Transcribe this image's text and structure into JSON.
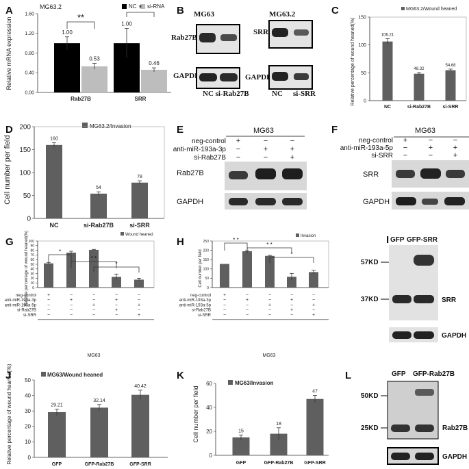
{
  "colors": {
    "dark": "#5f5f5f",
    "light": "#bdbdbd",
    "black": "#000000",
    "blot_bg": "#e4e4e4",
    "band": "#2a2a2a"
  },
  "panel_letters": [
    "A",
    "B",
    "C",
    "D",
    "E",
    "F",
    "G",
    "H",
    "I",
    "J",
    "K",
    "L"
  ],
  "chart_data": [
    {
      "panel": "A",
      "type": "bar",
      "title": "MG63.2",
      "categories": [
        "Rab27B",
        "SRR"
      ],
      "series": [
        {
          "name": "NC",
          "values": [
            1.0,
            1.0
          ],
          "errors": [
            0.13,
            0.3
          ],
          "labels": [
            "1.00",
            "1.00"
          ],
          "color": "#000000"
        },
        {
          "name": "si-RNA",
          "values": [
            0.53,
            0.46
          ],
          "errors": [
            0.06,
            0.04
          ],
          "labels": [
            "0.53",
            "0.46"
          ],
          "color": "#bdbdbd"
        }
      ],
      "ylabel": "Relative mRNA expression",
      "xlabel": "",
      "ylim": [
        0,
        1.6
      ],
      "yticks": [
        "0.00",
        "0.40",
        "0.80",
        "1.20",
        "1.60"
      ],
      "significance": [
        "**",
        "*"
      ],
      "legend": "top-right"
    },
    {
      "panel": "C",
      "type": "bar",
      "title": "MG63.2/Wound heaned",
      "categories": [
        "NC",
        "si-Rab27B",
        "si-SRR"
      ],
      "values": [
        106.21,
        48.32,
        54.68
      ],
      "errors": [
        5,
        2,
        2
      ],
      "labels": [
        "106.21",
        "48.32",
        "54.68"
      ],
      "ylabel": "Relative percentage of wound heaned(%)",
      "ylim": [
        0,
        150
      ],
      "yticks": [
        "0",
        "50",
        "100",
        "150"
      ]
    },
    {
      "panel": "D",
      "type": "bar",
      "title": "MG63.2/Invasion",
      "categories": [
        "NC",
        "si-Rab27B",
        "si-SRR"
      ],
      "values": [
        160,
        54,
        78
      ],
      "errors": [
        5,
        4,
        4
      ],
      "labels": [
        "160",
        "54",
        "78"
      ],
      "ylabel": "Cell number per field",
      "ylim": [
        0,
        200
      ],
      "yticks": [
        "0",
        "50",
        "100",
        "150",
        "200"
      ]
    },
    {
      "panel": "G",
      "type": "bar",
      "title": "Wound heaned",
      "values": [
        52,
        75,
        81,
        23,
        17
      ],
      "errors": [
        2,
        3,
        1,
        6,
        3
      ],
      "ylabel": "Relative percentage of wound heaned(%)",
      "ylim": [
        0,
        100
      ],
      "yticks": [
        "0",
        "10",
        "20",
        "30",
        "40",
        "50",
        "60",
        "70",
        "80",
        "90",
        "100"
      ],
      "treatments": [
        {
          "name": "neg-control",
          "signs": [
            "+",
            "−",
            "−",
            "−",
            "−"
          ]
        },
        {
          "name": "anti-miR-193a-3p",
          "signs": [
            "−",
            "+",
            "−",
            "+",
            "−"
          ]
        },
        {
          "name": "anti-miR-193a-5p",
          "signs": [
            "−",
            "−",
            "+",
            "−",
            "+"
          ]
        },
        {
          "name": "si-Rab27B",
          "signs": [
            "−",
            "−",
            "−",
            "+",
            "−"
          ]
        },
        {
          "name": "si-SRR",
          "signs": [
            "−",
            "−",
            "−",
            "−",
            "+"
          ]
        }
      ],
      "xlabel": "MG63",
      "significance": [
        "*",
        "* *",
        "*"
      ]
    },
    {
      "panel": "H",
      "type": "bar",
      "title": "Invasion",
      "values": [
        127,
        195,
        170,
        58,
        83
      ],
      "errors": [
        0,
        3,
        3,
        18,
        10
      ],
      "ylabel": "Cell number per field",
      "ylim": [
        0,
        250
      ],
      "yticks": [
        "0",
        "50",
        "100",
        "150",
        "200",
        "250"
      ],
      "treatments": [
        {
          "name": "neg-control",
          "signs": [
            "+",
            "−",
            "−",
            "−",
            "−"
          ]
        },
        {
          "name": "anti-miR-193a-3p",
          "signs": [
            "−",
            "+",
            "−",
            "+",
            "−"
          ]
        },
        {
          "name": "anti-miR-193a-5p",
          "signs": [
            "−",
            "−",
            "+",
            "−",
            "+"
          ]
        },
        {
          "name": "si-Rab27B",
          "signs": [
            "−",
            "−",
            "−",
            "+",
            "−"
          ]
        },
        {
          "name": "si-SRR",
          "signs": [
            "−",
            "−",
            "−",
            "−",
            "+"
          ]
        }
      ],
      "xlabel": "MG63",
      "significance": [
        "* *",
        "* *",
        "*"
      ]
    },
    {
      "panel": "J",
      "type": "bar",
      "title": "MG63/Wound heaned",
      "categories": [
        "GFP",
        "GFP-Rab27B",
        "GFP-SRR"
      ],
      "values": [
        29.21,
        32.14,
        40.42
      ],
      "errors": [
        2,
        2,
        3
      ],
      "labels": [
        "29.21",
        "32.14",
        "40.42"
      ],
      "ylabel": "Relative percentage of wound heaned(%)",
      "ylim": [
        0,
        50
      ],
      "yticks": [
        "0",
        "10",
        "20",
        "30",
        "40",
        "50"
      ]
    },
    {
      "panel": "K",
      "type": "bar",
      "title": "MG63/Invasion",
      "categories": [
        "GFP",
        "GFP-Rab27B",
        "GFP-SRR"
      ],
      "values": [
        15,
        18,
        47
      ],
      "errors": [
        2,
        5,
        3
      ],
      "labels": [
        "15",
        "18",
        "47"
      ],
      "ylabel": "Cell number per field",
      "ylim": [
        0,
        60
      ],
      "yticks": [
        "0",
        "20",
        "40",
        "60"
      ]
    }
  ],
  "blots": {
    "B": {
      "left_title": "MG63",
      "right_title": "MG63.2",
      "left_rows": [
        "Rab27B",
        "GAPDH"
      ],
      "right_rows": [
        "SRR",
        "GAPDH"
      ],
      "left_lanes": "NC si-Rab27B",
      "right_lanes": [
        "NC",
        "si-SRR"
      ]
    },
    "E": {
      "title": "MG63",
      "treatments": [
        {
          "name": "neg-control",
          "signs": [
            "+",
            "−",
            "−"
          ]
        },
        {
          "name": "anti-miR-193a-3p",
          "signs": [
            "−",
            "+",
            "+"
          ]
        },
        {
          "name": "si-Rab27B",
          "signs": [
            "−",
            "−",
            "+"
          ]
        }
      ],
      "rows": [
        "Rab27B",
        "GAPDH"
      ]
    },
    "F": {
      "title": "MG63",
      "treatments": [
        {
          "name": "neg-control",
          "signs": [
            "+",
            "−",
            "−"
          ]
        },
        {
          "name": "anti-miR-193a-5p",
          "signs": [
            "−",
            "+",
            "+"
          ]
        },
        {
          "name": "si-SRR",
          "signs": [
            "−",
            "−",
            "+"
          ]
        }
      ],
      "rows": [
        "SRR",
        "GAPDH"
      ]
    },
    "I": {
      "lanes": [
        "GFP",
        "GFP-SRR"
      ],
      "markers": [
        "57KD",
        "37KD"
      ],
      "labels": [
        "SRR",
        "GAPDH"
      ]
    },
    "L": {
      "lanes": [
        "GFP",
        "GFP-Rab27B"
      ],
      "markers": [
        "50KD",
        "25KD"
      ],
      "labels": [
        "Rab27B",
        "GAPDH"
      ]
    }
  }
}
